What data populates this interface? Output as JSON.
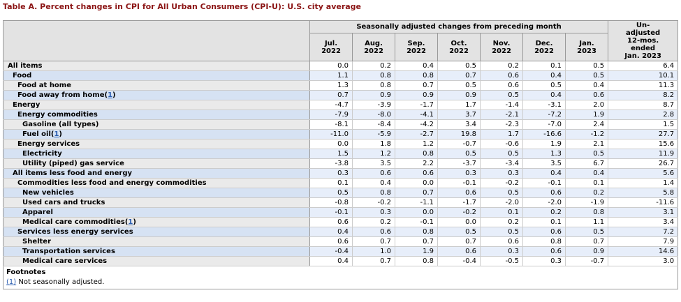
{
  "page": {
    "title": "Table A. Percent changes in CPI for All Urban Consumers (CPI-U): U.S. city average"
  },
  "colors": {
    "title_red": "#8b1414",
    "link_blue": "#2a5db0",
    "header_gray": "#e3e3e3",
    "stripe_gray_label": "#eaeaea",
    "stripe_blue_label": "#d6e2f3",
    "stripe_blue_data": "#e7eefa"
  },
  "table": {
    "columns": {
      "group_label": "Seasonally adjusted changes from preceding month",
      "months": [
        "Jul.\n2022",
        "Aug.\n2022",
        "Sep.\n2022",
        "Oct.\n2022",
        "Nov.\n2022",
        "Dec.\n2022",
        "Jan.\n2023"
      ],
      "unadjusted_label": "Un-\nadjusted\n12-mos.\nended\nJan. 2023"
    },
    "rows": [
      {
        "label": "All items",
        "indent": 0,
        "footnote": null,
        "values": [
          "0.0",
          "0.2",
          "0.4",
          "0.5",
          "0.2",
          "0.1",
          "0.5",
          "6.4"
        ]
      },
      {
        "label": "Food",
        "indent": 1,
        "footnote": null,
        "values": [
          "1.1",
          "0.8",
          "0.8",
          "0.7",
          "0.6",
          "0.4",
          "0.5",
          "10.1"
        ]
      },
      {
        "label": "Food at home",
        "indent": 2,
        "footnote": null,
        "values": [
          "1.3",
          "0.8",
          "0.7",
          "0.5",
          "0.6",
          "0.5",
          "0.4",
          "11.3"
        ]
      },
      {
        "label": "Food away from home",
        "indent": 2,
        "footnote": "1",
        "values": [
          "0.7",
          "0.9",
          "0.9",
          "0.9",
          "0.5",
          "0.4",
          "0.6",
          "8.2"
        ]
      },
      {
        "label": "Energy",
        "indent": 1,
        "footnote": null,
        "values": [
          "-4.7",
          "-3.9",
          "-1.7",
          "1.7",
          "-1.4",
          "-3.1",
          "2.0",
          "8.7"
        ]
      },
      {
        "label": "Energy commodities",
        "indent": 2,
        "footnote": null,
        "values": [
          "-7.9",
          "-8.0",
          "-4.1",
          "3.7",
          "-2.1",
          "-7.2",
          "1.9",
          "2.8"
        ]
      },
      {
        "label": "Gasoline (all types)",
        "indent": 3,
        "footnote": null,
        "values": [
          "-8.1",
          "-8.4",
          "-4.2",
          "3.4",
          "-2.3",
          "-7.0",
          "2.4",
          "1.5"
        ]
      },
      {
        "label": "Fuel oil",
        "indent": 3,
        "footnote": "1",
        "values": [
          "-11.0",
          "-5.9",
          "-2.7",
          "19.8",
          "1.7",
          "-16.6",
          "-1.2",
          "27.7"
        ]
      },
      {
        "label": "Energy services",
        "indent": 2,
        "footnote": null,
        "values": [
          "0.0",
          "1.8",
          "1.2",
          "-0.7",
          "-0.6",
          "1.9",
          "2.1",
          "15.6"
        ]
      },
      {
        "label": "Electricity",
        "indent": 3,
        "footnote": null,
        "values": [
          "1.5",
          "1.2",
          "0.8",
          "0.5",
          "0.5",
          "1.3",
          "0.5",
          "11.9"
        ]
      },
      {
        "label": "Utility (piped) gas service",
        "indent": 3,
        "footnote": null,
        "values": [
          "-3.8",
          "3.5",
          "2.2",
          "-3.7",
          "-3.4",
          "3.5",
          "6.7",
          "26.7"
        ]
      },
      {
        "label": "All items less food and energy",
        "indent": 1,
        "footnote": null,
        "values": [
          "0.3",
          "0.6",
          "0.6",
          "0.3",
          "0.3",
          "0.4",
          "0.4",
          "5.6"
        ]
      },
      {
        "label": "Commodities less food and energy commodities",
        "indent": 2,
        "footnote": null,
        "values": [
          "0.1",
          "0.4",
          "0.0",
          "-0.1",
          "-0.2",
          "-0.1",
          "0.1",
          "1.4"
        ]
      },
      {
        "label": "New vehicles",
        "indent": 3,
        "footnote": null,
        "values": [
          "0.5",
          "0.8",
          "0.7",
          "0.6",
          "0.5",
          "0.6",
          "0.2",
          "5.8"
        ]
      },
      {
        "label": "Used cars and trucks",
        "indent": 3,
        "footnote": null,
        "values": [
          "-0.8",
          "-0.2",
          "-1.1",
          "-1.7",
          "-2.0",
          "-2.0",
          "-1.9",
          "-11.6"
        ]
      },
      {
        "label": "Apparel",
        "indent": 3,
        "footnote": null,
        "values": [
          "-0.1",
          "0.3",
          "0.0",
          "-0.2",
          "0.1",
          "0.2",
          "0.8",
          "3.1"
        ]
      },
      {
        "label": "Medical care commodities",
        "indent": 3,
        "footnote": "1",
        "values": [
          "0.6",
          "0.2",
          "-0.1",
          "0.0",
          "0.2",
          "0.1",
          "1.1",
          "3.4"
        ]
      },
      {
        "label": "Services less energy services",
        "indent": 2,
        "footnote": null,
        "values": [
          "0.4",
          "0.6",
          "0.8",
          "0.5",
          "0.5",
          "0.6",
          "0.5",
          "7.2"
        ]
      },
      {
        "label": "Shelter",
        "indent": 3,
        "footnote": null,
        "values": [
          "0.6",
          "0.7",
          "0.7",
          "0.7",
          "0.6",
          "0.8",
          "0.7",
          "7.9"
        ]
      },
      {
        "label": "Transportation services",
        "indent": 3,
        "footnote": null,
        "values": [
          "-0.4",
          "1.0",
          "1.9",
          "0.6",
          "0.3",
          "0.6",
          "0.9",
          "14.6"
        ]
      },
      {
        "label": "Medical care services",
        "indent": 3,
        "footnote": null,
        "values": [
          "0.4",
          "0.7",
          "0.8",
          "-0.4",
          "-0.5",
          "0.3",
          "-0.7",
          "3.0"
        ]
      }
    ]
  },
  "footnotes": {
    "heading": "Footnotes",
    "items": [
      {
        "marker": "(1)",
        "text": "Not seasonally adjusted."
      }
    ]
  }
}
